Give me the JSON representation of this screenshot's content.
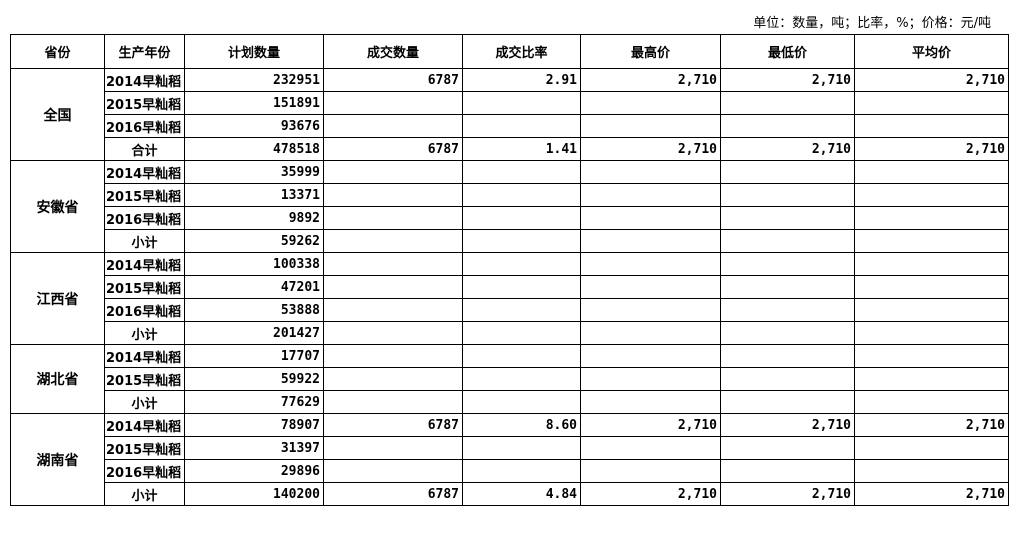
{
  "unit_note": "单位：数量，吨；比率，%；价格：元/吨",
  "headers": [
    "省份",
    "生产年份",
    "计划数量",
    "成交数量",
    "成交比率",
    "最高价",
    "最低价",
    "平均价"
  ],
  "groups": [
    {
      "province": "全国",
      "rows": [
        {
          "year": "2014早籼稻",
          "plan": "232951",
          "deal": "6787",
          "rate": "2.91",
          "high": "2,710",
          "low": "2,710",
          "avg": "2,710"
        },
        {
          "year": "2015早籼稻",
          "plan": "151891",
          "deal": "",
          "rate": "",
          "high": "",
          "low": "",
          "avg": ""
        },
        {
          "year": "2016早籼稻",
          "plan": "93676",
          "deal": "",
          "rate": "",
          "high": "",
          "low": "",
          "avg": ""
        },
        {
          "year": "合计",
          "plan": "478518",
          "deal": "6787",
          "rate": "1.41",
          "high": "2,710",
          "low": "2,710",
          "avg": "2,710",
          "total": true
        }
      ]
    },
    {
      "province": "安徽省",
      "rows": [
        {
          "year": "2014早籼稻",
          "plan": "35999",
          "deal": "",
          "rate": "",
          "high": "",
          "low": "",
          "avg": ""
        },
        {
          "year": "2015早籼稻",
          "plan": "13371",
          "deal": "",
          "rate": "",
          "high": "",
          "low": "",
          "avg": ""
        },
        {
          "year": "2016早籼稻",
          "plan": "9892",
          "deal": "",
          "rate": "",
          "high": "",
          "low": "",
          "avg": ""
        },
        {
          "year": "小计",
          "plan": "59262",
          "deal": "",
          "rate": "",
          "high": "",
          "low": "",
          "avg": "",
          "total": true
        }
      ]
    },
    {
      "province": "江西省",
      "rows": [
        {
          "year": "2014早籼稻",
          "plan": "100338",
          "deal": "",
          "rate": "",
          "high": "",
          "low": "",
          "avg": ""
        },
        {
          "year": "2015早籼稻",
          "plan": "47201",
          "deal": "",
          "rate": "",
          "high": "",
          "low": "",
          "avg": ""
        },
        {
          "year": "2016早籼稻",
          "plan": "53888",
          "deal": "",
          "rate": "",
          "high": "",
          "low": "",
          "avg": ""
        },
        {
          "year": "小计",
          "plan": "201427",
          "deal": "",
          "rate": "",
          "high": "",
          "low": "",
          "avg": "",
          "total": true
        }
      ]
    },
    {
      "province": "湖北省",
      "rows": [
        {
          "year": "2014早籼稻",
          "plan": "17707",
          "deal": "",
          "rate": "",
          "high": "",
          "low": "",
          "avg": ""
        },
        {
          "year": "2015早籼稻",
          "plan": "59922",
          "deal": "",
          "rate": "",
          "high": "",
          "low": "",
          "avg": ""
        },
        {
          "year": "小计",
          "plan": "77629",
          "deal": "",
          "rate": "",
          "high": "",
          "low": "",
          "avg": "",
          "total": true
        }
      ]
    },
    {
      "province": "湖南省",
      "rows": [
        {
          "year": "2014早籼稻",
          "plan": "78907",
          "deal": "6787",
          "rate": "8.60",
          "high": "2,710",
          "low": "2,710",
          "avg": "2,710"
        },
        {
          "year": "2015早籼稻",
          "plan": "31397",
          "deal": "",
          "rate": "",
          "high": "",
          "low": "",
          "avg": ""
        },
        {
          "year": "2016早籼稻",
          "plan": "29896",
          "deal": "",
          "rate": "",
          "high": "",
          "low": "",
          "avg": ""
        },
        {
          "year": "小计",
          "plan": "140200",
          "deal": "6787",
          "rate": "4.84",
          "high": "2,710",
          "low": "2,710",
          "avg": "2,710",
          "total": true
        }
      ]
    }
  ]
}
